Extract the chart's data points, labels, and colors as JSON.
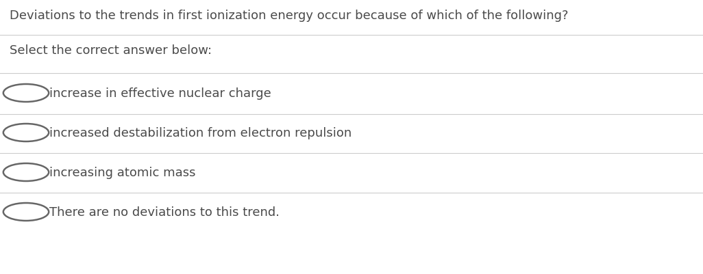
{
  "background_color": "#ffffff",
  "text_color": "#4a4a4a",
  "line_color": "#cccccc",
  "title": "Deviations to the trends in first ionization energy occur because of which of the following?",
  "subtitle": "Select the correct answer below:",
  "options": [
    "increase in effective nuclear charge",
    "increased destabilization from electron repulsion",
    "increasing atomic mass",
    "There are no deviations to this trend."
  ],
  "title_fontsize": 13.0,
  "subtitle_fontsize": 13.0,
  "option_fontsize": 13.0,
  "fig_width": 10.26,
  "fig_height": 4.02,
  "dpi": 100
}
